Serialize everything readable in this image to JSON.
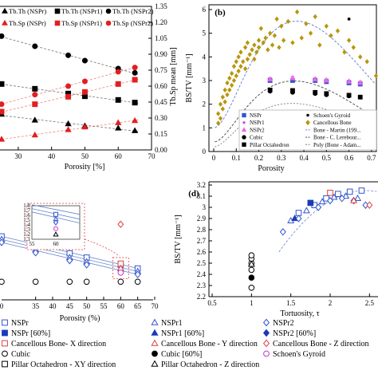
{
  "chart_data": [
    {
      "panel": "",
      "type": "scatter",
      "xlabel": "Porosity [%]",
      "ylabel_right": "Tb.Sp mean [mm]",
      "xlim": [
        25,
        70
      ],
      "x_ticks": [
        "30",
        "40",
        "50",
        "60",
        "70"
      ],
      "y_right_ticks": [
        "0.00",
        "0.15",
        "0.30",
        "0.45",
        "0.60",
        "0.75",
        "0.90",
        "1.05",
        "1.20",
        "1.35"
      ],
      "y_right_lim": [
        0,
        1.35
      ],
      "legend": [
        "Tb.Th (NSPr)",
        "Tb.Th (NSPr1)",
        "Tb.Th (NSPr2)",
        "Tb.Sp (NSPr)",
        "Tb.Sp (NSPr1)",
        "Tb.Sp (NSPr2)"
      ],
      "legend_colors": [
        "#000000",
        "#000000",
        "#000000",
        "#e02020",
        "#e02020",
        "#e02020"
      ],
      "series": [
        {
          "name": "Tb.Th (NSPr)",
          "marker": "triangle",
          "color": "#000000",
          "x": [
            25,
            35,
            45,
            50,
            60,
            65
          ],
          "y": [
            0.335,
            0.28,
            0.245,
            0.225,
            0.205,
            0.18
          ]
        },
        {
          "name": "Tb.Th (NSPr1)",
          "marker": "square",
          "color": "#000000",
          "x": [
            25,
            35,
            45,
            50,
            60,
            65
          ],
          "y": [
            0.62,
            0.575,
            0.53,
            0.505,
            0.47,
            0.445
          ]
        },
        {
          "name": "Tb.Th (NSPr2)",
          "marker": "circle",
          "color": "#000000",
          "x": [
            25,
            35,
            45,
            50,
            60,
            65
          ],
          "y": [
            1.07,
            0.975,
            0.89,
            0.84,
            0.765,
            0.725
          ]
        },
        {
          "name": "Tb.Sp (NSPr)",
          "marker": "triangle",
          "color": "#e02020",
          "x": [
            25,
            35,
            45,
            50,
            60,
            65
          ],
          "y": [
            0.1,
            0.14,
            0.19,
            0.215,
            0.255,
            0.275
          ]
        },
        {
          "name": "Tb.Sp (NSPr1)",
          "marker": "square",
          "color": "#e02020",
          "x": [
            25,
            35,
            45,
            50,
            60,
            65
          ],
          "y": [
            0.36,
            0.43,
            0.5,
            0.545,
            0.62,
            0.66
          ]
        },
        {
          "name": "Tb.Sp (NSPr2)",
          "marker": "circle",
          "color": "#e02020",
          "x": [
            25,
            35,
            45,
            50,
            60,
            65
          ],
          "y": [
            0.43,
            0.52,
            0.6,
            0.645,
            0.735,
            0.775
          ]
        }
      ]
    },
    {
      "panel": "(b)",
      "type": "scatter",
      "xlabel": "Porosity",
      "ylabel": "BS/TV [mm⁻¹]",
      "xlim": [
        0,
        0.75
      ],
      "ylim": [
        0,
        6
      ],
      "x_ticks": [
        "0",
        "0.1",
        "0.2",
        "0.3",
        "0.4",
        "0.5",
        "0.6",
        "0.7"
      ],
      "y_ticks": [
        "0",
        "1",
        "2",
        "3",
        "4",
        "5",
        "6"
      ],
      "legend": [
        "NSPr",
        "NSPr1",
        "NSPr2",
        "Cubic",
        "Pillar Octahedron",
        "Schoen's Gyroid",
        "Cancellous Bone",
        "Bone - Martin (199...",
        "Bone - C. Lerebour...",
        "Poly (Bone - Adam..."
      ],
      "legend_colors": [
        "#3355cc",
        "#cc33cc",
        "#ee66ee",
        "#000000",
        "#000000",
        "#000000",
        "#b8960c",
        "#6688cc",
        "#555555",
        "#888888"
      ],
      "series": [
        {
          "name": "Cancellous Bone",
          "marker": "diamond",
          "color": "#b8960c",
          "x": [
            0.02,
            0.02,
            0.03,
            0.03,
            0.04,
            0.04,
            0.05,
            0.05,
            0.06,
            0.06,
            0.07,
            0.07,
            0.08,
            0.08,
            0.09,
            0.09,
            0.1,
            0.1,
            0.11,
            0.11,
            0.12,
            0.12,
            0.13,
            0.14,
            0.14,
            0.15,
            0.15,
            0.16,
            0.17,
            0.18,
            0.18,
            0.19,
            0.2,
            0.2,
            0.21,
            0.22,
            0.23,
            0.24,
            0.25,
            0.26,
            0.27,
            0.28,
            0.29,
            0.3,
            0.31,
            0.33,
            0.35,
            0.37,
            0.39,
            0.41,
            0.43,
            0.45,
            0.47,
            0.5,
            0.52,
            0.55,
            0.58,
            0.6,
            0.62,
            0.65,
            0.68,
            0.72
          ],
          "y": [
            1.2,
            1.6,
            1.4,
            2.0,
            1.8,
            2.3,
            2.1,
            2.6,
            2.4,
            2.9,
            2.6,
            3.1,
            2.8,
            3.3,
            3.0,
            3.6,
            3.2,
            3.8,
            3.4,
            4.0,
            3.6,
            4.2,
            3.8,
            3.5,
            4.4,
            3.9,
            4.6,
            4.1,
            4.3,
            4.5,
            3.9,
            4.2,
            4.7,
            4.4,
            5.2,
            4.6,
            4.8,
            4.3,
            5.0,
            4.5,
            4.9,
            5.6,
            4.4,
            5.3,
            4.7,
            5.5,
            4.6,
            5.9,
            4.8,
            5.4,
            5.0,
            5.7,
            4.5,
            5.3,
            4.9,
            5.1,
            4.2,
            4.7,
            4.4,
            4.0,
            3.8,
            3.2
          ]
        },
        {
          "name": "NSPr",
          "marker": "square",
          "color": "#3355cc",
          "x": [
            0.25,
            0.35,
            0.45,
            0.5,
            0.6,
            0.65
          ],
          "y": [
            3.0,
            3.0,
            3.0,
            2.95,
            2.9,
            2.85
          ]
        },
        {
          "name": "NSPr1",
          "marker": "star",
          "color": "#cc33cc",
          "x": [
            0.25,
            0.35,
            0.45,
            0.5,
            0.6,
            0.65
          ],
          "y": [
            3.1,
            3.15,
            3.1,
            3.05,
            3.0,
            2.95
          ]
        },
        {
          "name": "NSPr2",
          "marker": "triangle",
          "color": "#ee66ee",
          "x": [
            0.25,
            0.35,
            0.45,
            0.5,
            0.6,
            0.65
          ],
          "y": [
            3.05,
            3.1,
            3.05,
            3.0,
            2.95,
            2.9
          ]
        },
        {
          "name": "Cubic",
          "marker": "circle",
          "color": "#000000",
          "x": [
            0.25,
            0.35,
            0.45,
            0.5,
            0.6,
            0.65
          ],
          "y": [
            2.55,
            2.5,
            2.45,
            2.4,
            2.35,
            2.3
          ]
        },
        {
          "name": "Pillar Octahedron",
          "marker": "square-filled",
          "color": "#000000",
          "x": [
            0.25,
            0.35,
            0.45,
            0.5,
            0.6,
            0.65
          ],
          "y": [
            2.6,
            2.58,
            2.5,
            2.45,
            2.38,
            2.3
          ]
        },
        {
          "name": "Schoen's Gyroid",
          "marker": "dot",
          "color": "#000000",
          "x": [
            0.6
          ],
          "y": [
            5.6
          ]
        }
      ]
    },
    {
      "panel": "",
      "type": "scatter",
      "xlabel": "Porosity (%)",
      "xlim": [
        25,
        70
      ],
      "x_ticks": [
        "35",
        "40",
        "45",
        "50",
        "55",
        "60",
        "65",
        "70"
      ],
      "inset_y_ticks": [
        "1.8",
        "1.7",
        "1.6",
        "1.5",
        "1.4",
        "1.3",
        "1.2",
        "1.1"
      ],
      "inset_x_ticks": [
        "55",
        "60"
      ],
      "inset_ylim": [
        1.1,
        1.8
      ],
      "inset_xlim": [
        55,
        65
      ],
      "series": [
        {
          "name": "NSPr",
          "marker": "square-open",
          "color": "#3355cc",
          "x": [
            25,
            35,
            45,
            50,
            60,
            65
          ],
          "y": [
            2.35,
            2.2,
            2.07,
            2.0,
            1.88,
            1.82
          ]
        },
        {
          "name": "NSPr1",
          "marker": "triangle-open",
          "color": "#3355cc",
          "x": [
            25,
            35,
            45,
            50,
            60,
            65
          ],
          "y": [
            2.3,
            2.13,
            2.0,
            1.93,
            1.82,
            1.77
          ]
        },
        {
          "name": "NSPr2",
          "marker": "diamond-open",
          "color": "#3355cc",
          "x": [
            25,
            35,
            45,
            50,
            60,
            65
          ],
          "y": [
            2.25,
            2.08,
            1.95,
            1.88,
            1.78,
            1.72
          ]
        },
        {
          "name": "Cubic",
          "marker": "circle-open",
          "color": "#000000",
          "x": [
            25,
            35,
            45,
            50,
            60,
            65
          ],
          "y": [
            1.6,
            1.6,
            1.6,
            1.6,
            1.6,
            1.6
          ]
        },
        {
          "name": "Cancellous Bone - X direction",
          "marker": "square-open",
          "color": "#e04040",
          "x": [
            60
          ],
          "y": [
            1.9
          ]
        },
        {
          "name": "Cancellous Bone - Y direction",
          "marker": "triangle-open",
          "color": "#e04040",
          "x": [
            60
          ],
          "y": [
            1.82
          ]
        },
        {
          "name": "Cancellous Bone - Z direction",
          "marker": "diamond-open",
          "color": "#e04040",
          "x": [
            60
          ],
          "y": [
            2.55
          ]
        },
        {
          "name": "Schoen's Gyroid",
          "marker": "circle-open",
          "color": "#cc33cc",
          "x": [
            60
          ],
          "y": [
            1.75
          ]
        }
      ]
    },
    {
      "panel": "(d)",
      "type": "scatter",
      "xlabel": "Tortuosity, τ",
      "ylabel": "BS/TV [mm⁻¹]",
      "xlim": [
        0.5,
        2.75
      ],
      "ylim": [
        2.2,
        3.2
      ],
      "x_ticks": [
        "0.5",
        "1",
        "1.5",
        "2",
        "2.5"
      ],
      "y_ticks": [
        "2.2",
        "2.3",
        "2.4",
        "2.5",
        "2.6",
        "2.7",
        "2.8",
        "2.9",
        "3",
        "3.1",
        "3.2"
      ],
      "series": [
        {
          "name": "Cubic",
          "marker": "circle-open",
          "color": "#000000",
          "x": [
            1.0,
            1.0,
            1.0,
            1.0,
            1.0
          ],
          "y": [
            2.28,
            2.44,
            2.5,
            2.54,
            2.57
          ]
        },
        {
          "name": "Cubic [60%]",
          "marker": "circle",
          "color": "#000000",
          "x": [
            1.0
          ],
          "y": [
            2.37
          ]
        },
        {
          "name": "Pillar Octahedron - Z direction",
          "marker": "triangle-open",
          "color": "#000000",
          "x": [
            1.0
          ],
          "y": [
            2.49
          ]
        },
        {
          "name": "NSPr",
          "marker": "square-open",
          "color": "#3355cc",
          "x": [
            1.6,
            1.8,
            1.95,
            2.1,
            2.25,
            2.4
          ],
          "y": [
            2.95,
            3.02,
            3.08,
            3.12,
            3.14,
            3.15
          ]
        },
        {
          "name": "NSPr [60%]",
          "marker": "square",
          "color": "#1a3ab8",
          "x": [
            1.75
          ],
          "y": [
            3.04
          ]
        },
        {
          "name": "NSPr1",
          "marker": "triangle-open",
          "color": "#3355cc",
          "x": [
            1.5,
            1.7,
            1.9,
            2.05,
            2.2,
            2.35
          ],
          "y": [
            2.88,
            2.97,
            3.05,
            3.09,
            3.1,
            3.08
          ]
        },
        {
          "name": "NSPr1 [60%]",
          "marker": "triangle",
          "color": "#1a3ab8",
          "x": [
            1.55
          ],
          "y": [
            2.9
          ]
        },
        {
          "name": "NSPr2",
          "marker": "diamond-open",
          "color": "#3355cc",
          "x": [
            1.4,
            1.6,
            1.85,
            2.0,
            2.15,
            2.3,
            2.45,
            2.6
          ],
          "y": [
            2.78,
            2.9,
            3.0,
            3.06,
            3.08,
            3.06,
            3.02,
            2.98
          ]
        },
        {
          "name": "Cancellous Bone - X direction",
          "marker": "square-open",
          "color": "#e04040",
          "x": [
            2.0
          ],
          "y": [
            3.13
          ]
        },
        {
          "name": "Cancellous Bone - Y direction",
          "marker": "triangle-open",
          "color": "#e04040",
          "x": [
            2.3
          ],
          "y": [
            3.06
          ]
        },
        {
          "name": "Cancellous Bone - Z direction",
          "marker": "diamond-open",
          "color": "#e04040",
          "x": [
            2.5
          ],
          "y": [
            3.02
          ]
        }
      ]
    }
  ],
  "bottom_legend": [
    {
      "label": "NSPr",
      "marker": "square-open",
      "color": "#3355cc"
    },
    {
      "label": "NSPr1",
      "marker": "triangle-open",
      "color": "#3355cc"
    },
    {
      "label": "NSPr2",
      "marker": "diamond-open",
      "color": "#3355cc"
    },
    {
      "label": "NSPr [60%]",
      "marker": "square",
      "color": "#1a3ab8"
    },
    {
      "label": "NSPr1 [60%]",
      "marker": "triangle",
      "color": "#1a3ab8"
    },
    {
      "label": "NSPr2 [60%]",
      "marker": "diamond",
      "color": "#1a3ab8"
    },
    {
      "label": "Cancellous Bone- X direction",
      "marker": "square-open",
      "color": "#e04040"
    },
    {
      "label": "Cancellous Bone - Y direction",
      "marker": "triangle-open",
      "color": "#e04040"
    },
    {
      "label": "Cancellous Bone - Z direction",
      "marker": "diamond-open",
      "color": "#e04040"
    },
    {
      "label": "Cubic",
      "marker": "circle-open",
      "color": "#000000"
    },
    {
      "label": "Cubic [60%]",
      "marker": "circle",
      "color": "#000000"
    },
    {
      "label": "Schoen's Gyroid",
      "marker": "circle-open",
      "color": "#cc33cc"
    },
    {
      "label": "Pillar Octahedron - XY direction",
      "marker": "square-open",
      "color": "#000000"
    },
    {
      "label": "Pillar Octahedron - Z direction",
      "marker": "triangle-open",
      "color": "#000000"
    }
  ]
}
